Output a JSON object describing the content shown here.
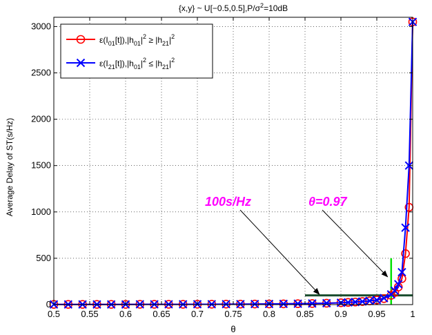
{
  "chart_data": {
    "type": "line",
    "title": "{x,y} ~ U[−0.5,0.5],P/σ²=10dB",
    "title_parts": {
      "main": "{x,y} ~ U[−0.5,0.5],P/σ",
      "sup": "2",
      "tail": "=10dB"
    },
    "xlabel": "θ",
    "ylabel": "Average Delay of ST(s/Hz)",
    "xlim": [
      0.5,
      1.0
    ],
    "ylim": [
      0,
      3100
    ],
    "xticks": [
      0.5,
      0.55,
      0.6,
      0.65,
      0.7,
      0.75,
      0.8,
      0.85,
      0.9,
      0.95,
      1.0
    ],
    "xtick_labels": [
      "0.5",
      "0.55",
      "0.6",
      "0.65",
      "0.7",
      "0.75",
      "0.8",
      "0.85",
      "0.9",
      "0.95",
      "1"
    ],
    "yticks": [
      0,
      500,
      1000,
      1500,
      2000,
      2500,
      3000
    ],
    "ytick_labels": [
      "0",
      "500",
      "1000",
      "1500",
      "2000",
      "2500",
      "3000"
    ],
    "grid": true,
    "grid_style": "dotted",
    "legend_position": "top-left",
    "series": [
      {
        "legend_parts": [
          "ε(I",
          "01",
          "[t]),|h",
          "01",
          "|",
          "2",
          " ≥ |h",
          "21",
          "|",
          "2"
        ],
        "color": "#ff0000",
        "marker": "circle",
        "x": [
          0.5,
          0.52,
          0.54,
          0.56,
          0.58,
          0.6,
          0.62,
          0.64,
          0.66,
          0.68,
          0.7,
          0.72,
          0.74,
          0.76,
          0.78,
          0.8,
          0.82,
          0.84,
          0.86,
          0.88,
          0.9,
          0.91,
          0.92,
          0.93,
          0.94,
          0.95,
          0.96,
          0.97,
          0.975,
          0.98,
          0.985,
          0.99,
          0.995,
          1.0
        ],
        "y": [
          2,
          2,
          2,
          2,
          2,
          2,
          3,
          3,
          3,
          3,
          4,
          4,
          5,
          5,
          6,
          7,
          8,
          10,
          12,
          15,
          20,
          24,
          28,
          33,
          40,
          50,
          65,
          100,
          130,
          190,
          280,
          550,
          1050,
          3050
        ]
      },
      {
        "legend_parts": [
          "ε(I",
          "21",
          "[t]),|h",
          "01",
          "|",
          "2",
          " ≤ |h",
          "21",
          "|",
          "2"
        ],
        "color": "#0000ff",
        "marker": "x",
        "x": [
          0.5,
          0.52,
          0.54,
          0.56,
          0.58,
          0.6,
          0.62,
          0.64,
          0.66,
          0.68,
          0.7,
          0.72,
          0.74,
          0.76,
          0.78,
          0.8,
          0.82,
          0.84,
          0.86,
          0.88,
          0.9,
          0.91,
          0.92,
          0.93,
          0.94,
          0.95,
          0.96,
          0.97,
          0.975,
          0.98,
          0.985,
          0.99,
          0.995,
          1.0
        ],
        "y": [
          2,
          2,
          2,
          2,
          2,
          2,
          3,
          3,
          3,
          3,
          4,
          4,
          5,
          5,
          6,
          7,
          8,
          10,
          12,
          15,
          20,
          24,
          28,
          33,
          40,
          50,
          70,
          110,
          150,
          220,
          350,
          830,
          1500,
          3050
        ]
      }
    ],
    "reference_lines": [
      {
        "kind": "horizontal",
        "y": 100,
        "x_from": 0.85,
        "x_to": 1.0,
        "color": "#1a4d2e"
      },
      {
        "kind": "vertical",
        "x": 0.97,
        "y_from": 0,
        "y_to": 500,
        "color": "#00e000"
      }
    ],
    "annotations": [
      {
        "text": "100s/Hz",
        "color": "#ff00ff",
        "arrow_to_x": 0.87,
        "arrow_to_y": 110
      },
      {
        "text": "θ=0.97",
        "color": "#ff00ff",
        "arrow_to_x": 0.965,
        "arrow_to_y": 300
      }
    ]
  }
}
